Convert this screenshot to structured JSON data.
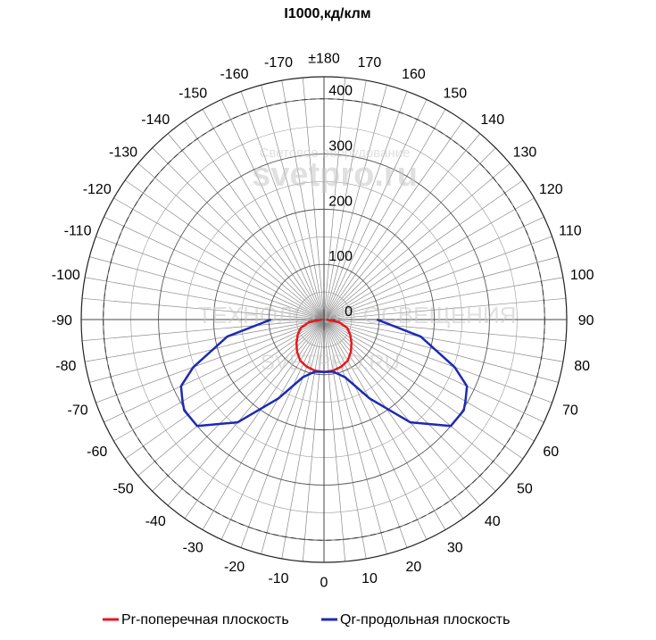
{
  "chart_data": {
    "type": "polar-line",
    "title": "I1000,кд/клм",
    "angle_ticks": [
      {
        "deg": 180,
        "label": "±180"
      },
      {
        "deg": 170,
        "label": "170"
      },
      {
        "deg": 160,
        "label": "160"
      },
      {
        "deg": 150,
        "label": "150"
      },
      {
        "deg": 140,
        "label": "140"
      },
      {
        "deg": 130,
        "label": "130"
      },
      {
        "deg": 120,
        "label": "120"
      },
      {
        "deg": 110,
        "label": "110"
      },
      {
        "deg": 100,
        "label": "100"
      },
      {
        "deg": 90,
        "label": "90"
      },
      {
        "deg": 80,
        "label": "80"
      },
      {
        "deg": 70,
        "label": "70"
      },
      {
        "deg": 60,
        "label": "60"
      },
      {
        "deg": 50,
        "label": "50"
      },
      {
        "deg": 40,
        "label": "40"
      },
      {
        "deg": 30,
        "label": "30"
      },
      {
        "deg": 20,
        "label": "20"
      },
      {
        "deg": 10,
        "label": "10"
      },
      {
        "deg": 0,
        "label": "0"
      },
      {
        "deg": -10,
        "label": "-10"
      },
      {
        "deg": -20,
        "label": "-20"
      },
      {
        "deg": -30,
        "label": "-30"
      },
      {
        "deg": -40,
        "label": "-40"
      },
      {
        "deg": -50,
        "label": "-50"
      },
      {
        "deg": -60,
        "label": "-60"
      },
      {
        "deg": -70,
        "label": "-70"
      },
      {
        "deg": -80,
        "label": "-80"
      },
      {
        "deg": -90,
        "label": "-90"
      },
      {
        "deg": -100,
        "label": "-100"
      },
      {
        "deg": -110,
        "label": "-110"
      },
      {
        "deg": -120,
        "label": "-120"
      },
      {
        "deg": -130,
        "label": "-130"
      },
      {
        "deg": -140,
        "label": "-140"
      },
      {
        "deg": -150,
        "label": "-150"
      },
      {
        "deg": -160,
        "label": "-160"
      },
      {
        "deg": -170,
        "label": "-170"
      }
    ],
    "radial_ticks": [
      {
        "value": 0,
        "label": "0"
      },
      {
        "value": 100,
        "label": "100"
      },
      {
        "value": 200,
        "label": "200"
      },
      {
        "value": 300,
        "label": "300"
      },
      {
        "value": 400,
        "label": "400"
      }
    ],
    "r_max": 440,
    "r_dashed": 400,
    "series": [
      {
        "name": "Pr-поперечная плоскость",
        "color": "#e8181b",
        "points": [
          [
            -90,
            4
          ],
          [
            -80,
            28
          ],
          [
            -70,
            45
          ],
          [
            -60,
            55
          ],
          [
            -50,
            65
          ],
          [
            -40,
            76
          ],
          [
            -30,
            86
          ],
          [
            -20,
            91
          ],
          [
            -10,
            94
          ],
          [
            0,
            95
          ],
          [
            10,
            94
          ],
          [
            20,
            91
          ],
          [
            30,
            86
          ],
          [
            40,
            76
          ],
          [
            50,
            65
          ],
          [
            60,
            55
          ],
          [
            70,
            45
          ],
          [
            80,
            28
          ],
          [
            90,
            4
          ]
        ]
      },
      {
        "name": "Qr-продольная плоскость",
        "color": "#1c2ab4",
        "points": [
          [
            -90,
            96
          ],
          [
            -80,
            178
          ],
          [
            -70,
            252
          ],
          [
            -65,
            286
          ],
          [
            -60,
            296
          ],
          [
            -57,
            302
          ],
          [
            -50,
            300
          ],
          [
            -40,
            243
          ],
          [
            -30,
            165
          ],
          [
            -20,
            111
          ],
          [
            -10,
            96
          ],
          [
            0,
            95
          ],
          [
            10,
            96
          ],
          [
            20,
            111
          ],
          [
            30,
            165
          ],
          [
            40,
            243
          ],
          [
            50,
            300
          ],
          [
            57,
            302
          ],
          [
            60,
            296
          ],
          [
            65,
            286
          ],
          [
            70,
            252
          ],
          [
            80,
            178
          ],
          [
            90,
            96
          ]
        ]
      }
    ],
    "legend_position": "bottom"
  },
  "watermark": {
    "line1": "Световое оборудование",
    "line2": "svetpro.ru",
    "line3": "ТЕХНОЛОГИИ ОСВЕЩЕНИЯ",
    "line4": "SVETPRO.RU"
  }
}
